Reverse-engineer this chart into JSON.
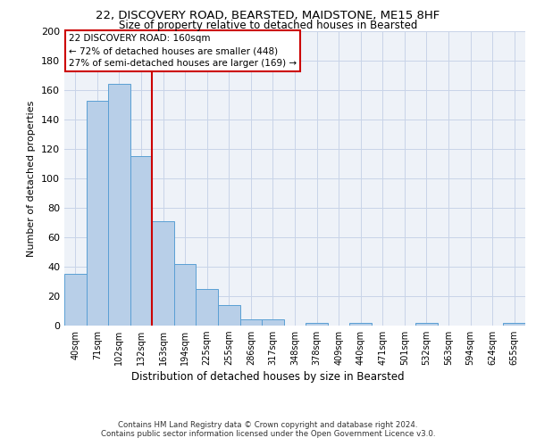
{
  "title_line1": "22, DISCOVERY ROAD, BEARSTED, MAIDSTONE, ME15 8HF",
  "title_line2": "Size of property relative to detached houses in Bearsted",
  "xlabel": "Distribution of detached houses by size in Bearsted",
  "ylabel": "Number of detached properties",
  "bar_labels": [
    "40sqm",
    "71sqm",
    "102sqm",
    "132sqm",
    "163sqm",
    "194sqm",
    "225sqm",
    "255sqm",
    "286sqm",
    "317sqm",
    "348sqm",
    "378sqm",
    "409sqm",
    "440sqm",
    "471sqm",
    "501sqm",
    "532sqm",
    "563sqm",
    "594sqm",
    "624sqm",
    "655sqm"
  ],
  "bar_values": [
    35,
    153,
    164,
    115,
    71,
    42,
    25,
    14,
    4,
    4,
    0,
    2,
    0,
    2,
    0,
    0,
    2,
    0,
    0,
    0,
    2
  ],
  "bar_color": "#b8cfe8",
  "bar_edge_color": "#5a9fd4",
  "property_line_x": 3.5,
  "annotation_title": "22 DISCOVERY ROAD: 160sqm",
  "annotation_line1": "← 72% of detached houses are smaller (448)",
  "annotation_line2": "27% of semi-detached houses are larger (169) →",
  "red_line_color": "#cc0000",
  "ylim": [
    0,
    200
  ],
  "yticks": [
    0,
    20,
    40,
    60,
    80,
    100,
    120,
    140,
    160,
    180,
    200
  ],
  "footer_line1": "Contains HM Land Registry data © Crown copyright and database right 2024.",
  "footer_line2": "Contains public sector information licensed under the Open Government Licence v3.0.",
  "bg_color": "#eef2f8",
  "grid_color": "#c8d4e8",
  "title1_fontsize": 9.5,
  "title2_fontsize": 8.5,
  "ylabel_fontsize": 8,
  "xlabel_fontsize": 8.5,
  "tick_fontsize": 7,
  "footer_fontsize": 6.2,
  "ann_fontsize": 7.5
}
